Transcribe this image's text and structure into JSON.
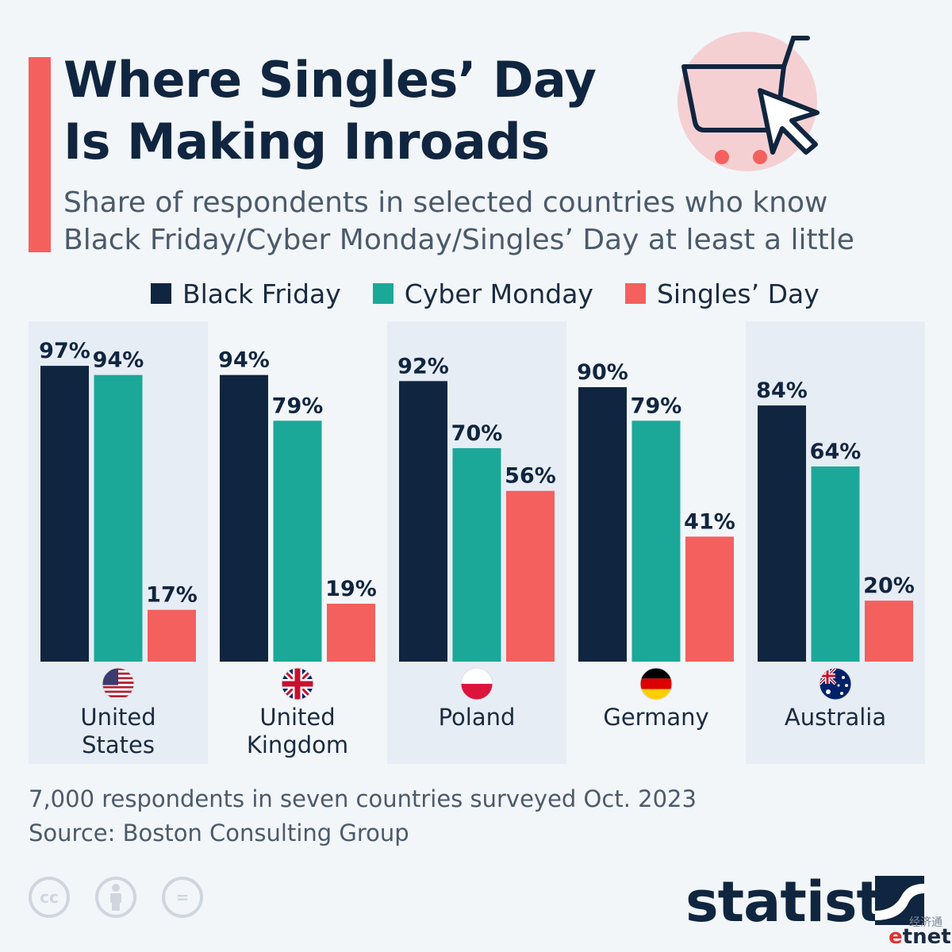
{
  "header": {
    "title_line1": "Where Singles’ Day",
    "title_line2": "Is Making Inroads",
    "subtitle_line1": "Share of respondents in selected countries who know",
    "subtitle_line2": "Black Friday/Cyber Monday/Singles’ Day at least a little",
    "icon": "shopping-cart-cursor-icon"
  },
  "colors": {
    "black_friday": "#10253f",
    "cyber_monday": "#1ba899",
    "singles_day": "#f4605e",
    "panel": "#e7edf5",
    "accent": "#f4605e"
  },
  "chart_data": {
    "type": "bar",
    "categories": [
      {
        "label_lines": [
          "United",
          "States"
        ],
        "flag": "us-flag-icon"
      },
      {
        "label_lines": [
          "United",
          "Kingdom"
        ],
        "flag": "uk-flag-icon"
      },
      {
        "label_lines": [
          "Poland"
        ],
        "flag": "poland-flag-icon"
      },
      {
        "label_lines": [
          "Germany"
        ],
        "flag": "germany-flag-icon"
      },
      {
        "label_lines": [
          "Australia"
        ],
        "flag": "australia-flag-icon"
      }
    ],
    "series": [
      {
        "name": "Black Friday",
        "values": [
          97,
          94,
          92,
          90,
          84
        ]
      },
      {
        "name": "Cyber Monday",
        "values": [
          94,
          79,
          70,
          79,
          64
        ]
      },
      {
        "name": "Singles’ Day",
        "values": [
          17,
          19,
          56,
          41,
          20
        ]
      }
    ],
    "value_suffix": "%",
    "ylim": [
      0,
      100
    ],
    "legend_position": "top",
    "grid": false
  },
  "footer": {
    "note": "7,000 respondents in seven countries surveyed Oct. 2023",
    "source": "Source: Boston Consulting Group",
    "license_icons": [
      "cc-icon",
      "attribution-icon",
      "no-derivatives-icon"
    ],
    "cc_text": "cc",
    "nd_text": "=",
    "brand": "statista",
    "watermark_cn": "经济通",
    "watermark_first": "e",
    "watermark_rest": "tnet"
  }
}
